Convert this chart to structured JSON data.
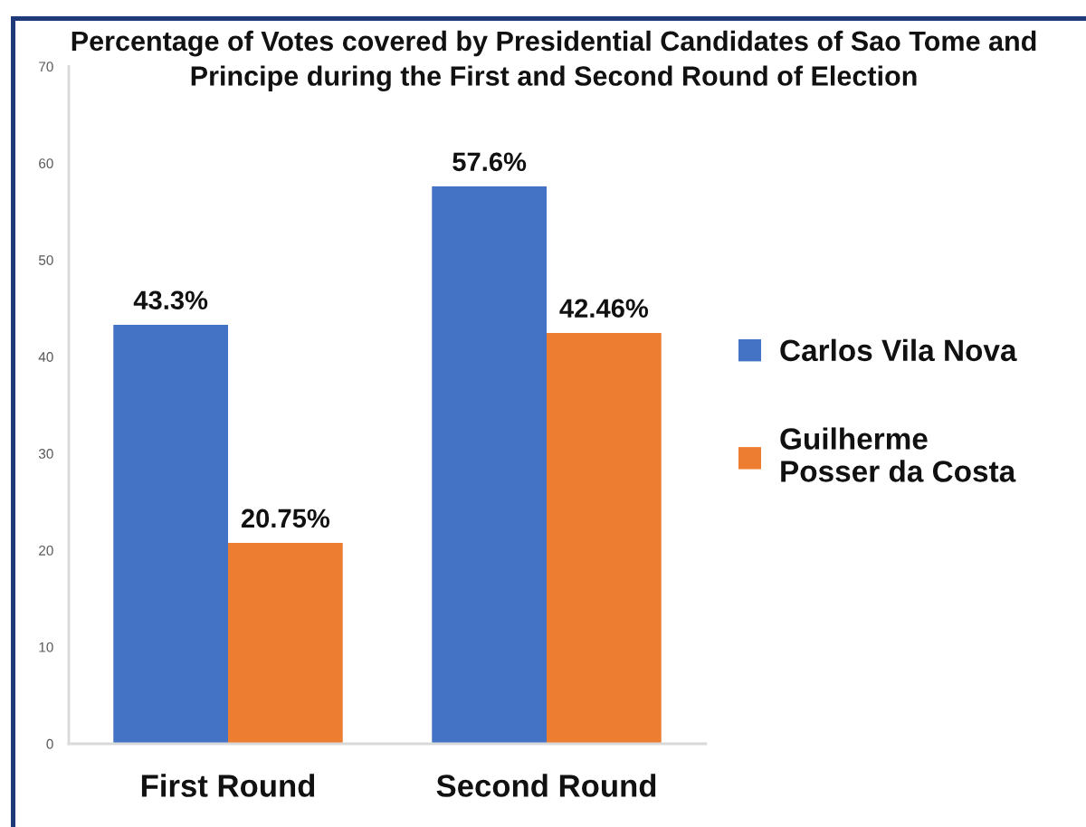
{
  "chart_data": {
    "type": "bar",
    "title": "Percentage of Votes covered by Presidential Candidates of Sao Tome and Principe during the First and Second Round of Election",
    "categories": [
      "First Round",
      "Second Round"
    ],
    "series": [
      {
        "name": "Carlos Vila Nova",
        "color": "#4472c4",
        "values": [
          43.3,
          57.6
        ],
        "value_labels": [
          "43.3%",
          "57.6%"
        ]
      },
      {
        "name": "Guilherme Posser da Costa",
        "color": "#ed7d31",
        "values": [
          20.75,
          42.46
        ],
        "value_labels": [
          "20.75%",
          "42.46%"
        ]
      }
    ],
    "ylim": [
      0,
      70
    ],
    "yticks": [
      0,
      10,
      20,
      30,
      40,
      50,
      60,
      70
    ],
    "legend": "right"
  }
}
